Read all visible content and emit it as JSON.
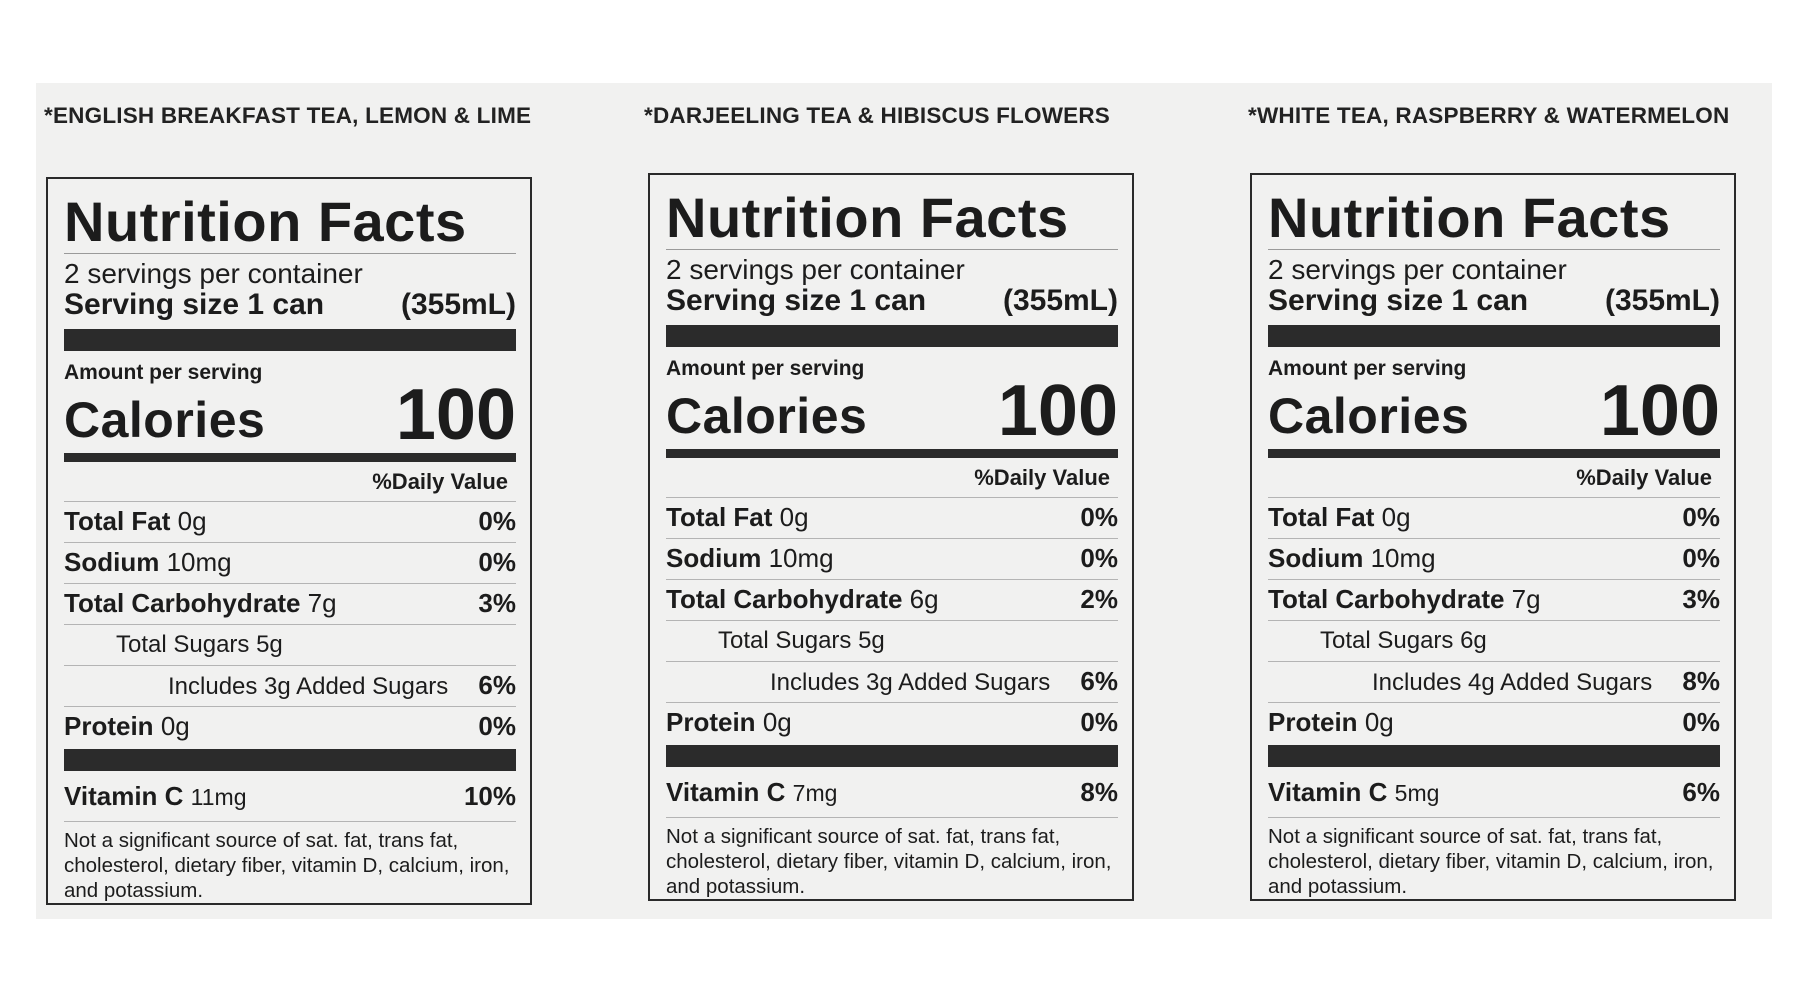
{
  "flavors": [
    "*ENGLISH BREAKFAST TEA, LEMON & LIME",
    "*DARJEELING TEA & HIBISCUS FLOWERS",
    "*WHITE TEA, RASPBERRY & WATERMELON"
  ],
  "panels": [
    {
      "title": "Nutrition Facts",
      "servings": "2 servings per container",
      "serving_size_label": "Serving size 1 can",
      "serving_size_value": "(355mL)",
      "amount_per_serving": "Amount per serving",
      "calories_label": "Calories",
      "calories": "100",
      "dv_header": "%Daily Value",
      "total_fat_label": "Total Fat",
      "total_fat_amt": "0g",
      "total_fat_dv": "0%",
      "sodium_label": "Sodium",
      "sodium_amt": "10mg",
      "sodium_dv": "0%",
      "carb_label": "Total Carbohydrate",
      "carb_amt": "7g",
      "carb_dv": "3%",
      "sugars": "Total Sugars 5g",
      "added_sugars": "Includes 3g Added Sugars",
      "added_sugars_dv": "6%",
      "protein_label": "Protein",
      "protein_amt": "0g",
      "protein_dv": "0%",
      "vitc_label": "Vitamin C",
      "vitc_amt": "11mg",
      "vitc_dv": "10%",
      "footnote": "Not a significant source of sat. fat, trans fat, cholesterol, dietary fiber, vitamin D, calcium, iron, and potassium."
    },
    {
      "title": "Nutrition Facts",
      "servings": "2 servings per container",
      "serving_size_label": "Serving size 1 can",
      "serving_size_value": "(355mL)",
      "amount_per_serving": "Amount per serving",
      "calories_label": "Calories",
      "calories": "100",
      "dv_header": "%Daily Value",
      "total_fat_label": "Total Fat",
      "total_fat_amt": "0g",
      "total_fat_dv": "0%",
      "sodium_label": "Sodium",
      "sodium_amt": "10mg",
      "sodium_dv": "0%",
      "carb_label": "Total Carbohydrate",
      "carb_amt": "6g",
      "carb_dv": "2%",
      "sugars": "Total Sugars 5g",
      "added_sugars": "Includes 3g Added Sugars",
      "added_sugars_dv": "6%",
      "protein_label": "Protein",
      "protein_amt": "0g",
      "protein_dv": "0%",
      "vitc_label": "Vitamin C",
      "vitc_amt": "7mg",
      "vitc_dv": "8%",
      "footnote": "Not a significant source of sat. fat, trans fat, cholesterol, dietary fiber, vitamin D, calcium, iron, and potassium."
    },
    {
      "title": "Nutrition Facts",
      "servings": "2 servings per container",
      "serving_size_label": "Serving size 1 can",
      "serving_size_value": "(355mL)",
      "amount_per_serving": "Amount per serving",
      "calories_label": "Calories",
      "calories": "100",
      "dv_header": "%Daily Value",
      "total_fat_label": "Total Fat",
      "total_fat_amt": "0g",
      "total_fat_dv": "0%",
      "sodium_label": "Sodium",
      "sodium_amt": "10mg",
      "sodium_dv": "0%",
      "carb_label": "Total Carbohydrate",
      "carb_amt": "7g",
      "carb_dv": "3%",
      "sugars": "Total Sugars 6g",
      "added_sugars": "Includes 4g Added Sugars",
      "added_sugars_dv": "8%",
      "protein_label": "Protein",
      "protein_amt": "0g",
      "protein_dv": "0%",
      "vitc_label": "Vitamin C",
      "vitc_amt": "5mg",
      "vitc_dv": "6%",
      "footnote": "Not a significant source of sat. fat, trans fat, cholesterol, dietary fiber, vitamin D, calcium, iron, and potassium."
    }
  ]
}
